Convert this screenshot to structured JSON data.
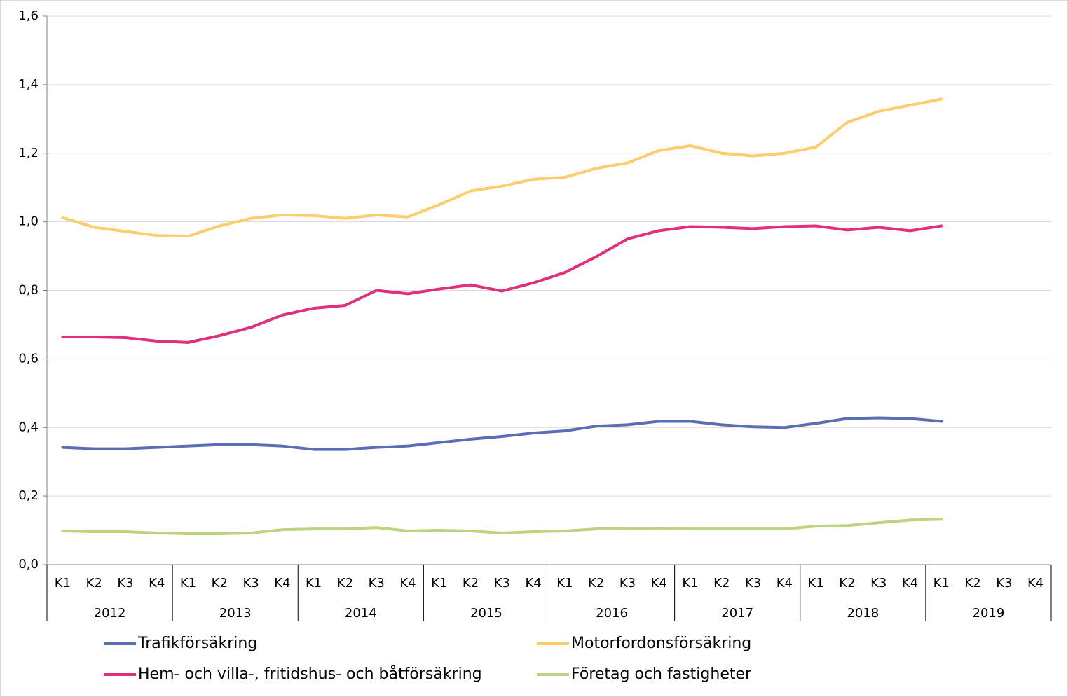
{
  "chart_data": {
    "type": "line",
    "categories": [
      "K1",
      "K2",
      "K3",
      "K4",
      "K1",
      "K2",
      "K3",
      "K4",
      "K1",
      "K2",
      "K3",
      "K4",
      "K1",
      "K2",
      "K3",
      "K4",
      "K1",
      "K2",
      "K3",
      "K4",
      "K1",
      "K2",
      "K3",
      "K4",
      "K1",
      "K2",
      "K3",
      "K4",
      "K1",
      "K2",
      "K3",
      "K4"
    ],
    "category_groups": [
      "2012",
      "2013",
      "2014",
      "2015",
      "2016",
      "2017",
      "2018",
      "2019"
    ],
    "ylim": [
      0,
      1.6
    ],
    "yticks": [
      {
        "value": 0,
        "label": "0,0"
      },
      {
        "value": 0.2,
        "label": "0,2"
      },
      {
        "value": 0.4,
        "label": "0,4"
      },
      {
        "value": 0.6,
        "label": "0,6"
      },
      {
        "value": 0.8,
        "label": "0,8"
      },
      {
        "value": 1.0,
        "label": "1,0"
      },
      {
        "value": 1.2,
        "label": "1,2"
      },
      {
        "value": 1.4,
        "label": "1,4"
      },
      {
        "value": 1.6,
        "label": "1,6"
      }
    ],
    "grid": true,
    "series": [
      {
        "name": "Trafikförsäkring",
        "color": "#5b6db4",
        "values": [
          0.342,
          0.338,
          0.338,
          0.342,
          0.346,
          0.35,
          0.35,
          0.346,
          0.336,
          0.336,
          0.342,
          0.346,
          0.356,
          0.366,
          0.374,
          0.384,
          0.39,
          0.404,
          0.408,
          0.418,
          0.418,
          0.408,
          0.402,
          0.4,
          0.412,
          0.426,
          0.428,
          0.426,
          0.418,
          null,
          null,
          null
        ]
      },
      {
        "name": "Motorfordonsförsäkring",
        "color": "#ffcc6e",
        "values": [
          1.012,
          0.984,
          0.972,
          0.96,
          0.958,
          0.988,
          1.01,
          1.02,
          1.018,
          1.01,
          1.02,
          1.014,
          1.05,
          1.09,
          1.104,
          1.124,
          1.13,
          1.156,
          1.172,
          1.208,
          1.222,
          1.2,
          1.192,
          1.2,
          1.218,
          1.29,
          1.322,
          1.34,
          1.358,
          null,
          null,
          null
        ]
      },
      {
        "name": "Hem- och villa-, fritidshus- och båtförsäkring",
        "color": "#e0307a",
        "values": [
          0.664,
          0.664,
          0.662,
          0.652,
          0.648,
          0.668,
          0.692,
          0.728,
          0.748,
          0.756,
          0.8,
          0.79,
          0.804,
          0.816,
          0.798,
          0.822,
          0.852,
          0.898,
          0.95,
          0.974,
          0.986,
          0.984,
          0.98,
          0.986,
          0.988,
          0.976,
          0.984,
          0.974,
          0.988,
          null,
          null,
          null
        ]
      },
      {
        "name": "Företag och fastigheter",
        "color": "#bcd47f",
        "values": [
          0.098,
          0.096,
          0.096,
          0.092,
          0.09,
          0.09,
          0.092,
          0.102,
          0.104,
          0.104,
          0.108,
          0.098,
          0.1,
          0.098,
          0.092,
          0.096,
          0.098,
          0.104,
          0.106,
          0.106,
          0.104,
          0.104,
          0.104,
          0.104,
          0.112,
          0.114,
          0.122,
          0.13,
          0.132,
          null,
          null,
          null
        ]
      }
    ]
  }
}
